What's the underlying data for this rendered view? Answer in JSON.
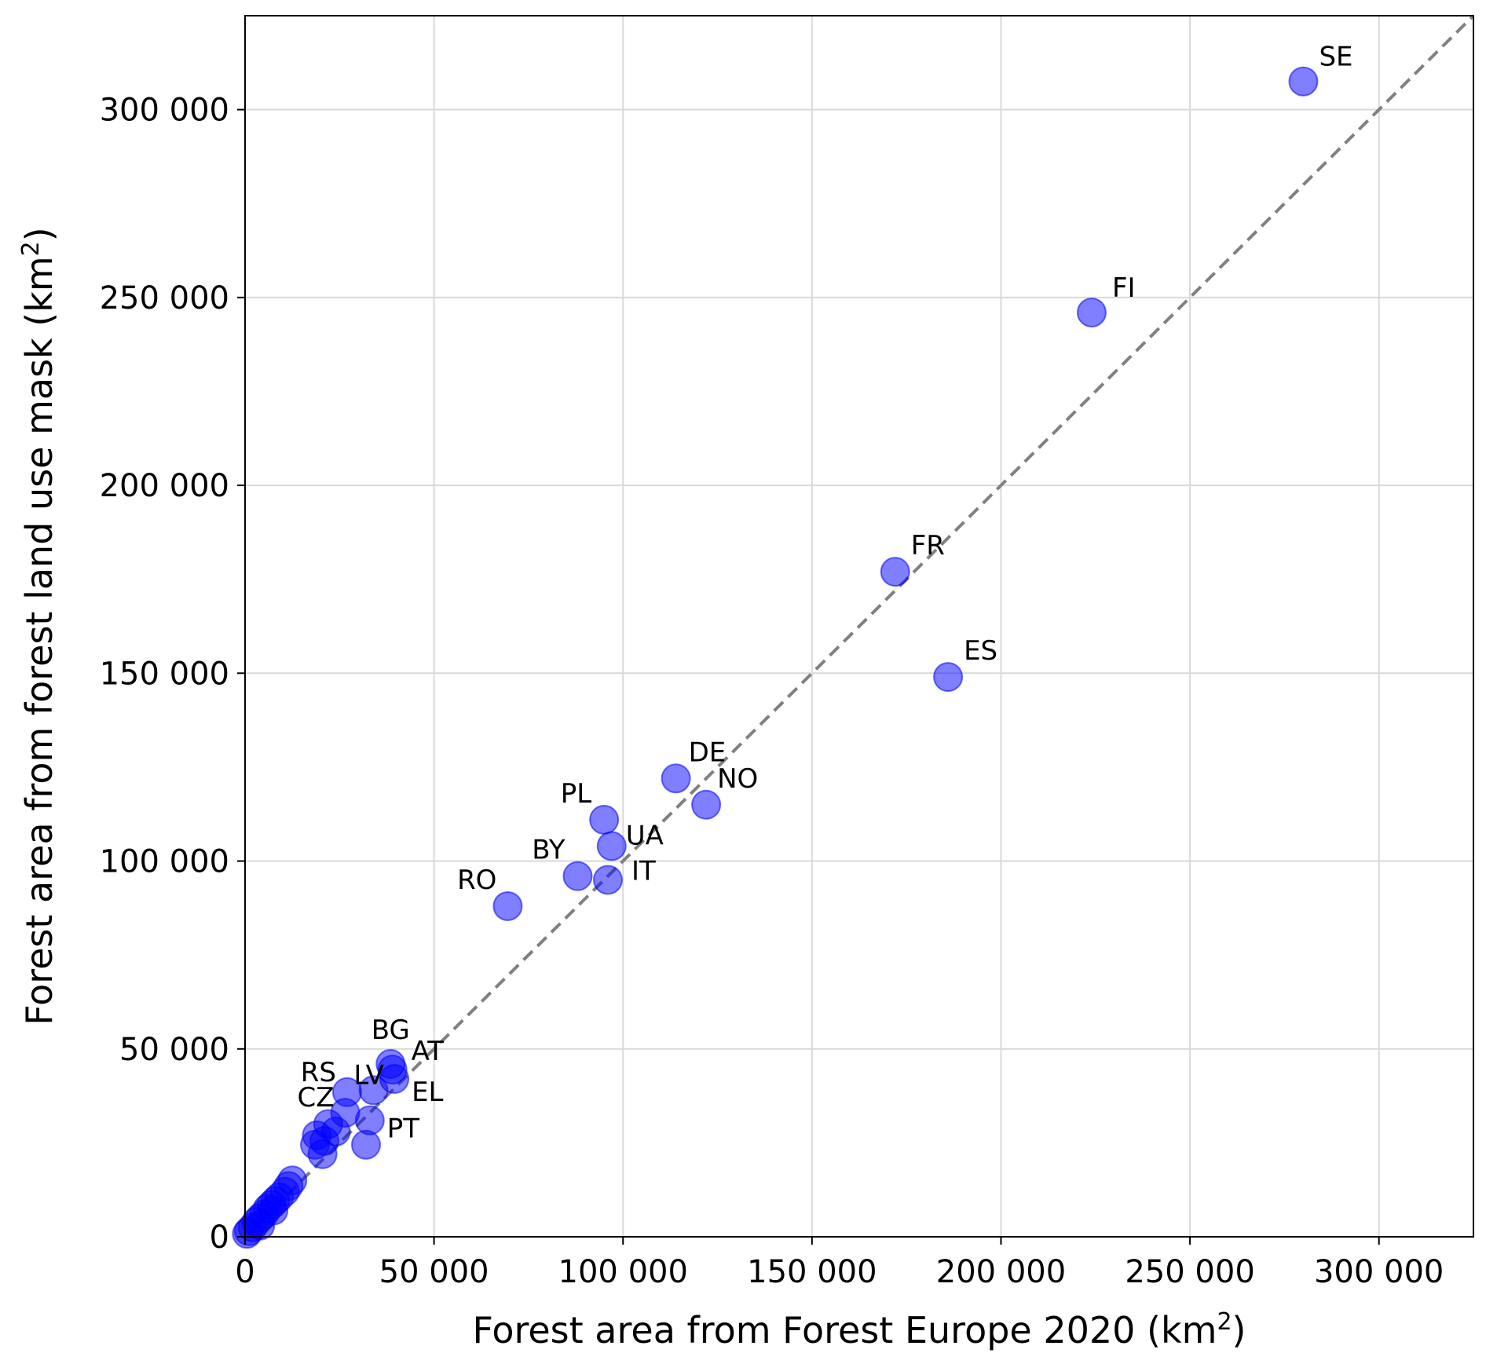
{
  "chart_data": {
    "type": "scatter",
    "title": "",
    "xlabel": "Forest area from Forest Europe 2020 (km",
    "xlabel_sup": "2",
    "xlabel_end": ")",
    "ylabel": "Forest area from forest land use mask (km",
    "ylabel_sup": "2",
    "ylabel_end": ")",
    "xlim": [
      0,
      325000
    ],
    "ylim": [
      0,
      325000
    ],
    "xticks": [
      0,
      50000,
      100000,
      150000,
      200000,
      250000,
      300000
    ],
    "yticks": [
      0,
      50000,
      100000,
      150000,
      200000,
      250000,
      300000
    ],
    "xtick_labels": [
      "0",
      "50 000",
      "100 000",
      "150 000",
      "200 000",
      "250 000",
      "300 000"
    ],
    "ytick_labels": [
      "0",
      "50 000",
      "100 000",
      "150 000",
      "200 000",
      "250 000",
      "300 000"
    ],
    "grid": true,
    "reference_line": {
      "style": "dashed",
      "color": "#808080",
      "from": [
        0,
        0
      ],
      "to": [
        325000,
        325000
      ]
    },
    "marker_color": "#0000ff",
    "marker_opacity": 0.5,
    "points": [
      {
        "x": 280000,
        "y": 307500,
        "label": "SE"
      },
      {
        "x": 224000,
        "y": 246000,
        "label": "FI"
      },
      {
        "x": 172000,
        "y": 177000,
        "label": "FR"
      },
      {
        "x": 186000,
        "y": 149000,
        "label": "ES"
      },
      {
        "x": 114000,
        "y": 122000,
        "label": "DE"
      },
      {
        "x": 122000,
        "y": 115000,
        "label": "NO"
      },
      {
        "x": 95000,
        "y": 111000,
        "label": "PL"
      },
      {
        "x": 97000,
        "y": 104000,
        "label": "UA"
      },
      {
        "x": 88000,
        "y": 96000,
        "label": "BY"
      },
      {
        "x": 96000,
        "y": 95000,
        "label": "IT"
      },
      {
        "x": 69500,
        "y": 88000,
        "label": "RO"
      },
      {
        "x": 38500,
        "y": 46000,
        "label": "BG"
      },
      {
        "x": 39000,
        "y": 44500,
        "label": "AT"
      },
      {
        "x": 39500,
        "y": 42000,
        "label": "EL"
      },
      {
        "x": 34000,
        "y": 39000,
        "label": "LV"
      },
      {
        "x": 27000,
        "y": 38500,
        "label": "RS"
      },
      {
        "x": 26500,
        "y": 33000,
        "label": "CZ"
      },
      {
        "x": 33000,
        "y": 31000,
        "label": "PT"
      },
      {
        "x": 32000,
        "y": 24500,
        "label": ""
      },
      {
        "x": 22000,
        "y": 30000,
        "label": ""
      },
      {
        "x": 24000,
        "y": 28000,
        "label": ""
      },
      {
        "x": 19000,
        "y": 27000,
        "label": ""
      },
      {
        "x": 21000,
        "y": 25500,
        "label": ""
      },
      {
        "x": 18500,
        "y": 24500,
        "label": ""
      },
      {
        "x": 20500,
        "y": 22000,
        "label": ""
      },
      {
        "x": 12500,
        "y": 15000,
        "label": ""
      },
      {
        "x": 11500,
        "y": 13500,
        "label": ""
      },
      {
        "x": 10500,
        "y": 12000,
        "label": ""
      },
      {
        "x": 9000,
        "y": 10500,
        "label": ""
      },
      {
        "x": 8000,
        "y": 9500,
        "label": ""
      },
      {
        "x": 7000,
        "y": 8500,
        "label": ""
      },
      {
        "x": 6000,
        "y": 7500,
        "label": ""
      },
      {
        "x": 7500,
        "y": 7000,
        "label": ""
      },
      {
        "x": 5000,
        "y": 6000,
        "label": ""
      },
      {
        "x": 4000,
        "y": 5000,
        "label": ""
      },
      {
        "x": 3000,
        "y": 4000,
        "label": ""
      },
      {
        "x": 2000,
        "y": 2500,
        "label": ""
      },
      {
        "x": 4000,
        "y": 3000,
        "label": ""
      },
      {
        "x": 1000,
        "y": 1500,
        "label": ""
      },
      {
        "x": 500,
        "y": 800,
        "label": ""
      }
    ]
  }
}
